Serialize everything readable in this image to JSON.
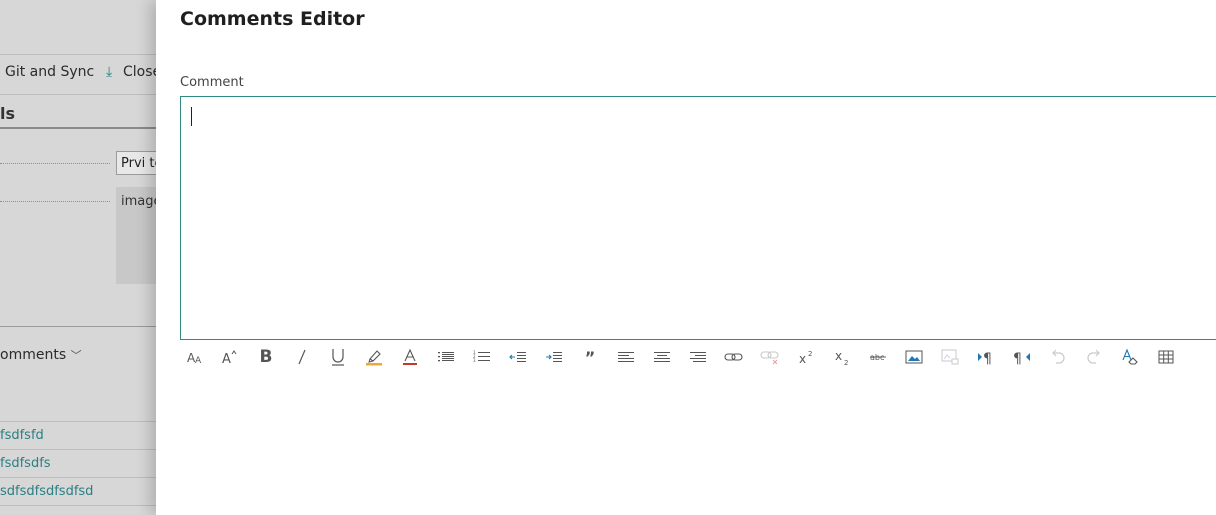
{
  "background": {
    "action_git": "Git and Sync",
    "action_close": "Close",
    "section_title": "ls",
    "input_value": "Prvi te",
    "image_label": "image",
    "comments_heading": "omments",
    "list_items": [
      "fsdfsfd",
      "fsdfsdfs",
      "sdfsdfsdfsdfsd"
    ]
  },
  "dialog": {
    "title": "Comments Editor",
    "field_label": "Comment",
    "comment_value": ""
  },
  "toolbar": [
    {
      "name": "font-family-icon",
      "glyph": "AA"
    },
    {
      "name": "font-size-icon",
      "glyph": "A^"
    },
    {
      "name": "bold-icon",
      "glyph": "B"
    },
    {
      "name": "italic-icon",
      "glyph": "/"
    },
    {
      "name": "underline-icon",
      "glyph": "U"
    },
    {
      "name": "highlight-icon",
      "glyph": "highlight"
    },
    {
      "name": "font-color-icon",
      "glyph": "A"
    },
    {
      "name": "bullet-list-icon",
      "glyph": "bullets"
    },
    {
      "name": "numbered-list-icon",
      "glyph": "numbers"
    },
    {
      "name": "decrease-indent-icon",
      "glyph": "outdent"
    },
    {
      "name": "increase-indent-icon",
      "glyph": "indent"
    },
    {
      "name": "quote-icon",
      "glyph": "„"
    },
    {
      "name": "align-left-icon",
      "glyph": "alignleft"
    },
    {
      "name": "align-center-icon",
      "glyph": "aligncenter"
    },
    {
      "name": "align-right-icon",
      "glyph": "alignright"
    },
    {
      "name": "insert-link-icon",
      "glyph": "link"
    },
    {
      "name": "remove-link-icon",
      "glyph": "unlink"
    },
    {
      "name": "superscript-icon",
      "glyph": "sup"
    },
    {
      "name": "subscript-icon",
      "glyph": "sub"
    },
    {
      "name": "strikethrough-icon",
      "glyph": "abc"
    },
    {
      "name": "insert-image-icon",
      "glyph": "image"
    },
    {
      "name": "edit-image-icon",
      "glyph": "image2"
    },
    {
      "name": "ltr-icon",
      "glyph": "ltr"
    },
    {
      "name": "rtl-icon",
      "glyph": "rtl"
    },
    {
      "name": "undo-icon",
      "glyph": "undo"
    },
    {
      "name": "redo-icon",
      "glyph": "redo"
    },
    {
      "name": "clear-format-icon",
      "glyph": "clear"
    },
    {
      "name": "insert-table-icon",
      "glyph": "table"
    }
  ],
  "colors": {
    "editor_border": "#2e8a83",
    "link": "#2a7f84",
    "highlight": "#f0a830",
    "font_color": "#c0392b",
    "icon": "#555555"
  }
}
